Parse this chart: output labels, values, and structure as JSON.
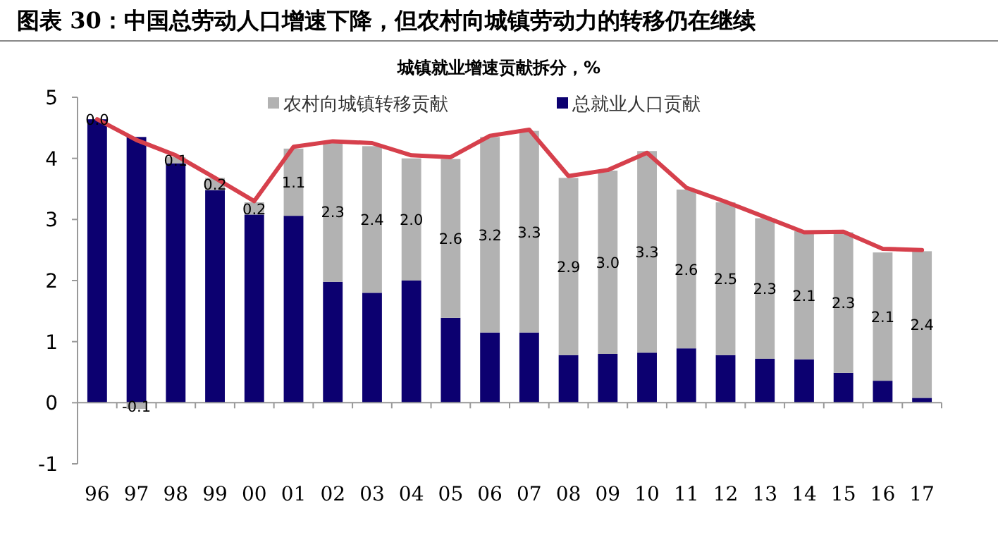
{
  "chart_data": {
    "type": "bar",
    "title": "图表 30：中国总劳动人口增速下降，但农村向城镇劳动力的转移仍在继续",
    "subtitle": "城镇就业增速贡献拆分，%",
    "categories": [
      "96",
      "97",
      "98",
      "99",
      "00",
      "01",
      "02",
      "03",
      "04",
      "05",
      "06",
      "07",
      "08",
      "09",
      "10",
      "11",
      "12",
      "13",
      "14",
      "15",
      "16",
      "17"
    ],
    "stacked": true,
    "ylim": [
      -1,
      5
    ],
    "yticks": [
      -1,
      0,
      1,
      2,
      3,
      4,
      5
    ],
    "legend": "top",
    "series": [
      {
        "name": "总就业人口贡献",
        "color": "#0c0070",
        "values": [
          4.64,
          4.35,
          3.92,
          3.48,
          3.08,
          3.06,
          1.98,
          1.8,
          2.0,
          1.39,
          1.15,
          1.15,
          0.78,
          0.8,
          0.82,
          0.89,
          0.78,
          0.72,
          0.71,
          0.49,
          0.36,
          0.08
        ]
      },
      {
        "name": "农村向城镇转移贡献",
        "color": "#b2b2b2",
        "values": [
          0.0,
          -0.1,
          0.1,
          0.2,
          0.2,
          1.1,
          2.3,
          2.4,
          2.0,
          2.6,
          3.2,
          3.3,
          2.9,
          3.0,
          3.3,
          2.6,
          2.5,
          2.3,
          2.1,
          2.3,
          2.1,
          2.4
        ],
        "value_labels": [
          "0.0",
          "-0.1",
          "0.1",
          "0.2",
          "0.2",
          "1.1",
          "2.3",
          "2.4",
          "2.0",
          "2.6",
          "3.2",
          "3.3",
          "2.9",
          "3.0",
          "3.3",
          "2.6",
          "2.5",
          "2.3",
          "2.1",
          "2.3",
          "2.1",
          "2.4"
        ]
      },
      {
        "type": "line",
        "color": "#d6404c",
        "values": [
          4.64,
          4.3,
          4.05,
          3.68,
          3.3,
          4.19,
          4.28,
          4.25,
          4.05,
          4.02,
          4.37,
          4.47,
          3.71,
          3.81,
          4.09,
          3.52,
          3.29,
          3.04,
          2.79,
          2.8,
          2.52,
          2.5
        ]
      }
    ]
  }
}
